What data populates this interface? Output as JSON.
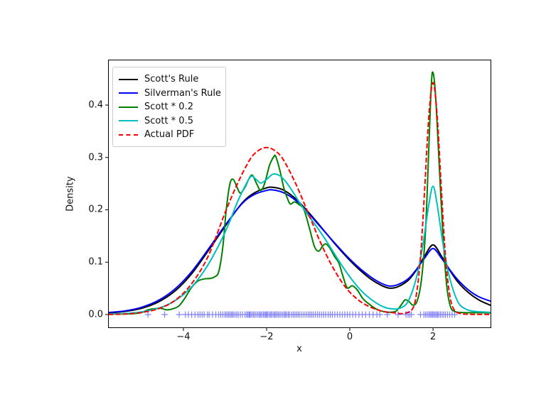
{
  "figure": {
    "background": "#ffffff"
  },
  "chart_data": {
    "type": "line",
    "title": "",
    "xlabel": "x",
    "ylabel": "Density",
    "grid": false,
    "legend_position": "upper left",
    "xlim": [
      -5.81,
      3.4
    ],
    "ylim": [
      -0.0258,
      0.4868
    ],
    "xticks": [
      {
        "value": -4,
        "label": "−4"
      },
      {
        "value": -2,
        "label": "−2"
      },
      {
        "value": 0,
        "label": "0"
      },
      {
        "value": 2,
        "label": "2"
      }
    ],
    "yticks": [
      {
        "value": 0.0,
        "label": "0.0"
      },
      {
        "value": 0.1,
        "label": "0.1"
      },
      {
        "value": 0.2,
        "label": "0.2"
      },
      {
        "value": 0.3,
        "label": "0.3"
      },
      {
        "value": 0.4,
        "label": "0.4"
      }
    ],
    "series": [
      {
        "name": "Scott's Rule",
        "color": "#000000",
        "dash": null,
        "points": [
          [
            -5.8,
            0.003
          ],
          [
            -5.4,
            0.006
          ],
          [
            -5.0,
            0.012
          ],
          [
            -4.6,
            0.024
          ],
          [
            -4.2,
            0.045
          ],
          [
            -3.8,
            0.078
          ],
          [
            -3.4,
            0.122
          ],
          [
            -3.0,
            0.168
          ],
          [
            -2.6,
            0.212
          ],
          [
            -2.3,
            0.232
          ],
          [
            -2.0,
            0.242
          ],
          [
            -1.85,
            0.243
          ],
          [
            -1.6,
            0.238
          ],
          [
            -1.3,
            0.221
          ],
          [
            -1.0,
            0.196
          ],
          [
            -0.7,
            0.168
          ],
          [
            -0.4,
            0.139
          ],
          [
            -0.1,
            0.112
          ],
          [
            0.2,
            0.088
          ],
          [
            0.5,
            0.068
          ],
          [
            0.75,
            0.056
          ],
          [
            0.95,
            0.0505
          ],
          [
            1.15,
            0.053
          ],
          [
            1.4,
            0.065
          ],
          [
            1.6,
            0.085
          ],
          [
            1.8,
            0.112
          ],
          [
            2.0,
            0.133
          ],
          [
            2.2,
            0.112
          ],
          [
            2.4,
            0.085
          ],
          [
            2.6,
            0.062
          ],
          [
            2.85,
            0.042
          ],
          [
            3.1,
            0.028
          ],
          [
            3.4,
            0.017
          ]
        ]
      },
      {
        "name": "Silverman's Rule",
        "color": "#0000ff",
        "dash": null,
        "points": [
          [
            -5.8,
            0.004
          ],
          [
            -5.4,
            0.007
          ],
          [
            -5.0,
            0.014
          ],
          [
            -4.6,
            0.027
          ],
          [
            -4.2,
            0.049
          ],
          [
            -3.8,
            0.082
          ],
          [
            -3.4,
            0.125
          ],
          [
            -3.0,
            0.17
          ],
          [
            -2.6,
            0.211
          ],
          [
            -2.3,
            0.229
          ],
          [
            -2.0,
            0.237
          ],
          [
            -1.85,
            0.238
          ],
          [
            -1.6,
            0.233
          ],
          [
            -1.3,
            0.218
          ],
          [
            -1.0,
            0.194
          ],
          [
            -0.7,
            0.167
          ],
          [
            -0.4,
            0.14
          ],
          [
            -0.1,
            0.114
          ],
          [
            0.2,
            0.091
          ],
          [
            0.5,
            0.072
          ],
          [
            0.75,
            0.06
          ],
          [
            0.95,
            0.0545
          ],
          [
            1.15,
            0.057
          ],
          [
            1.4,
            0.068
          ],
          [
            1.6,
            0.086
          ],
          [
            1.8,
            0.108
          ],
          [
            2.0,
            0.126
          ],
          [
            2.2,
            0.108
          ],
          [
            2.4,
            0.086
          ],
          [
            2.6,
            0.066
          ],
          [
            2.85,
            0.047
          ],
          [
            3.1,
            0.034
          ],
          [
            3.4,
            0.025
          ]
        ]
      },
      {
        "name": "Scott * 0.2",
        "color": "#008000",
        "dash": null,
        "points": [
          [
            -5.8,
            0.001
          ],
          [
            -5.4,
            0.001
          ],
          [
            -5.15,
            0.002
          ],
          [
            -5.0,
            0.004
          ],
          [
            -4.85,
            0.009
          ],
          [
            -4.7,
            0.011
          ],
          [
            -4.55,
            0.012
          ],
          [
            -4.4,
            0.009
          ],
          [
            -4.25,
            0.011
          ],
          [
            -4.1,
            0.017
          ],
          [
            -3.95,
            0.033
          ],
          [
            -3.8,
            0.052
          ],
          [
            -3.65,
            0.064
          ],
          [
            -3.5,
            0.068
          ],
          [
            -3.35,
            0.069
          ],
          [
            -3.25,
            0.072
          ],
          [
            -3.15,
            0.082
          ],
          [
            -3.05,
            0.13
          ],
          [
            -2.97,
            0.2
          ],
          [
            -2.88,
            0.25
          ],
          [
            -2.8,
            0.258
          ],
          [
            -2.71,
            0.243
          ],
          [
            -2.63,
            0.232
          ],
          [
            -2.52,
            0.243
          ],
          [
            -2.42,
            0.26
          ],
          [
            -2.34,
            0.266
          ],
          [
            -2.24,
            0.25
          ],
          [
            -2.14,
            0.237
          ],
          [
            -2.04,
            0.252
          ],
          [
            -1.93,
            0.285
          ],
          [
            -1.83,
            0.301
          ],
          [
            -1.78,
            0.302
          ],
          [
            -1.68,
            0.275
          ],
          [
            -1.58,
            0.24
          ],
          [
            -1.5,
            0.222
          ],
          [
            -1.43,
            0.211
          ],
          [
            -1.33,
            0.215
          ],
          [
            -1.22,
            0.21
          ],
          [
            -1.1,
            0.2
          ],
          [
            -0.97,
            0.165
          ],
          [
            -0.85,
            0.13
          ],
          [
            -0.75,
            0.121
          ],
          [
            -0.66,
            0.13
          ],
          [
            -0.58,
            0.135
          ],
          [
            -0.48,
            0.127
          ],
          [
            -0.36,
            0.11
          ],
          [
            -0.26,
            0.098
          ],
          [
            -0.16,
            0.072
          ],
          [
            -0.06,
            0.051
          ],
          [
            0.06,
            0.055
          ],
          [
            0.18,
            0.047
          ],
          [
            0.32,
            0.03
          ],
          [
            0.48,
            0.019
          ],
          [
            0.65,
            0.01
          ],
          [
            0.85,
            0.005
          ],
          [
            1.0,
            0.0045
          ],
          [
            1.12,
            0.007
          ],
          [
            1.25,
            0.02
          ],
          [
            1.33,
            0.028
          ],
          [
            1.42,
            0.025
          ],
          [
            1.52,
            0.018
          ],
          [
            1.62,
            0.026
          ],
          [
            1.72,
            0.065
          ],
          [
            1.82,
            0.16
          ],
          [
            1.9,
            0.32
          ],
          [
            1.96,
            0.44
          ],
          [
            2.0,
            0.462
          ],
          [
            2.06,
            0.42
          ],
          [
            2.14,
            0.3
          ],
          [
            2.24,
            0.15
          ],
          [
            2.33,
            0.055
          ],
          [
            2.42,
            0.015
          ],
          [
            2.52,
            0.006
          ],
          [
            2.65,
            0.004
          ],
          [
            2.9,
            0.0035
          ],
          [
            3.15,
            0.0035
          ],
          [
            3.4,
            0.003
          ]
        ]
      },
      {
        "name": "Scott * 0.5",
        "color": "#00bfbf",
        "dash": null,
        "points": [
          [
            -5.8,
            0.001
          ],
          [
            -5.4,
            0.002
          ],
          [
            -5.0,
            0.005
          ],
          [
            -4.6,
            0.012
          ],
          [
            -4.3,
            0.022
          ],
          [
            -4.0,
            0.038
          ],
          [
            -3.7,
            0.062
          ],
          [
            -3.4,
            0.096
          ],
          [
            -3.1,
            0.14
          ],
          [
            -2.9,
            0.175
          ],
          [
            -2.7,
            0.215
          ],
          [
            -2.5,
            0.248
          ],
          [
            -2.37,
            0.264
          ],
          [
            -2.25,
            0.258
          ],
          [
            -2.14,
            0.251
          ],
          [
            -2.0,
            0.258
          ],
          [
            -1.85,
            0.268
          ],
          [
            -1.7,
            0.266
          ],
          [
            -1.55,
            0.255
          ],
          [
            -1.4,
            0.238
          ],
          [
            -1.2,
            0.213
          ],
          [
            -1.0,
            0.19
          ],
          [
            -0.8,
            0.168
          ],
          [
            -0.6,
            0.145
          ],
          [
            -0.4,
            0.12
          ],
          [
            -0.2,
            0.095
          ],
          [
            0.0,
            0.072
          ],
          [
            0.2,
            0.052
          ],
          [
            0.4,
            0.036
          ],
          [
            0.6,
            0.024
          ],
          [
            0.8,
            0.015
          ],
          [
            1.0,
            0.011
          ],
          [
            1.2,
            0.012
          ],
          [
            1.4,
            0.025
          ],
          [
            1.6,
            0.07
          ],
          [
            1.75,
            0.13
          ],
          [
            1.9,
            0.21
          ],
          [
            2.0,
            0.245
          ],
          [
            2.1,
            0.21
          ],
          [
            2.25,
            0.13
          ],
          [
            2.4,
            0.07
          ],
          [
            2.6,
            0.024
          ],
          [
            2.8,
            0.01
          ],
          [
            3.0,
            0.006
          ],
          [
            3.2,
            0.005
          ],
          [
            3.4,
            0.004
          ]
        ]
      },
      {
        "name": "Actual PDF",
        "color": "#ff0000",
        "dash": "7 3",
        "points": [
          [
            -5.8,
            0.0002
          ],
          [
            -5.4,
            0.001
          ],
          [
            -5.0,
            0.004
          ],
          [
            -4.6,
            0.011
          ],
          [
            -4.2,
            0.027
          ],
          [
            -3.8,
            0.059
          ],
          [
            -3.4,
            0.112
          ],
          [
            -3.0,
            0.194
          ],
          [
            -2.7,
            0.25
          ],
          [
            -2.4,
            0.296
          ],
          [
            -2.2,
            0.313
          ],
          [
            -2.0,
            0.319
          ],
          [
            -1.8,
            0.313
          ],
          [
            -1.6,
            0.296
          ],
          [
            -1.3,
            0.25
          ],
          [
            -1.0,
            0.194
          ],
          [
            -0.7,
            0.137
          ],
          [
            -0.4,
            0.089
          ],
          [
            -0.1,
            0.052
          ],
          [
            0.2,
            0.028
          ],
          [
            0.5,
            0.014
          ],
          [
            0.8,
            0.006
          ],
          [
            1.1,
            0.003
          ],
          [
            1.3,
            0.002
          ],
          [
            1.5,
            0.01
          ],
          [
            1.6,
            0.038
          ],
          [
            1.7,
            0.11
          ],
          [
            1.8,
            0.24
          ],
          [
            1.9,
            0.379
          ],
          [
            2.0,
            0.443
          ],
          [
            2.1,
            0.379
          ],
          [
            2.2,
            0.24
          ],
          [
            2.3,
            0.11
          ],
          [
            2.4,
            0.038
          ],
          [
            2.5,
            0.01
          ],
          [
            2.65,
            0.002
          ],
          [
            2.9,
            0.0005
          ],
          [
            3.4,
            0.0002
          ]
        ]
      }
    ],
    "rug": {
      "color": "#0000ff",
      "opacity": 0.5,
      "marker": "plus",
      "x": [
        -4.85,
        -4.45,
        -4.1,
        -3.95,
        -3.88,
        -3.8,
        -3.72,
        -3.65,
        -3.6,
        -3.55,
        -3.5,
        -3.42,
        -3.38,
        -3.3,
        -3.22,
        -3.15,
        -3.1,
        -3.05,
        -3.0,
        -2.97,
        -2.93,
        -2.9,
        -2.86,
        -2.83,
        -2.8,
        -2.76,
        -2.72,
        -2.68,
        -2.63,
        -2.58,
        -2.52,
        -2.48,
        -2.45,
        -2.42,
        -2.4,
        -2.37,
        -2.33,
        -2.3,
        -2.26,
        -2.22,
        -2.18,
        -2.15,
        -2.12,
        -2.08,
        -2.05,
        -2.02,
        -2.0,
        -1.97,
        -1.93,
        -1.9,
        -1.87,
        -1.83,
        -1.8,
        -1.77,
        -1.73,
        -1.7,
        -1.66,
        -1.62,
        -1.58,
        -1.55,
        -1.52,
        -1.48,
        -1.45,
        -1.4,
        -1.36,
        -1.32,
        -1.28,
        -1.24,
        -1.2,
        -1.15,
        -1.1,
        -1.05,
        -1.0,
        -0.96,
        -0.92,
        -0.88,
        -0.83,
        -0.78,
        -0.73,
        -0.68,
        -0.63,
        -0.58,
        -0.52,
        -0.47,
        -0.42,
        -0.36,
        -0.3,
        -0.24,
        -0.18,
        -0.12,
        -0.06,
        0.0,
        0.07,
        0.14,
        0.22,
        0.3,
        0.38,
        0.47,
        0.56,
        0.65,
        0.72,
        0.9,
        1.16,
        1.35,
        1.4,
        1.44,
        1.48,
        1.7,
        1.78,
        1.82,
        1.86,
        1.9,
        1.93,
        1.96,
        1.99,
        2.02,
        2.05,
        2.08,
        2.11,
        2.14,
        2.18,
        2.22,
        2.26,
        2.3,
        2.35,
        2.4,
        2.46,
        2.52
      ]
    }
  }
}
